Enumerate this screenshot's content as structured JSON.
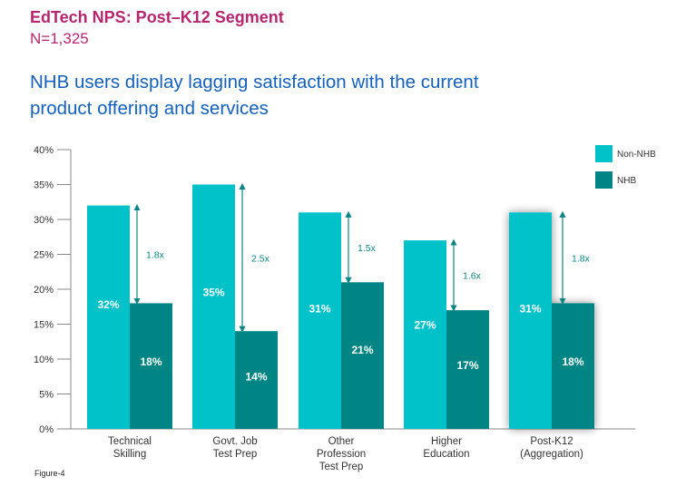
{
  "header": {
    "title": "EdTech NPS: Post–K12  Segment",
    "sample": "N=1,325",
    "headline": "NHB users display lagging satisfaction with the current product offering and services"
  },
  "footer": {
    "figure_label": "Figure-4"
  },
  "colors": {
    "non_nhb": "#00c2c8",
    "nhb": "#008585",
    "arrow": "#0d8585",
    "title": "#b5266f",
    "headline": "#1560b8"
  },
  "chart_data": {
    "type": "bar",
    "title": "NHB users display lagging satisfaction with the current product offering and services",
    "xlabel": "",
    "ylabel": "",
    "ylim": [
      0,
      40
    ],
    "yticks": [
      "0%",
      "5%",
      "10%",
      "15%",
      "20%",
      "25%",
      "30%",
      "35%",
      "40%"
    ],
    "ytick_values": [
      0,
      5,
      10,
      15,
      20,
      25,
      30,
      35,
      40
    ],
    "grid": false,
    "legend_position": "top-right",
    "categories": [
      [
        "Technical",
        "Skilling"
      ],
      [
        "Govt. Job",
        "Test Prep"
      ],
      [
        "Other",
        "Profession",
        "Test Prep"
      ],
      [
        "Higher",
        "Education"
      ],
      [
        "Post-K12",
        "(Aggregation)"
      ]
    ],
    "series": [
      {
        "name": "Non-NHB",
        "values": [
          32,
          35,
          31,
          27,
          31
        ],
        "labels": [
          "32%",
          "35%",
          "31%",
          "27%",
          "31%"
        ]
      },
      {
        "name": "NHB",
        "values": [
          18,
          14,
          21,
          17,
          18
        ],
        "labels": [
          "18%",
          "14%",
          "21%",
          "17%",
          "18%"
        ]
      }
    ],
    "annotations": {
      "ratios": [
        "1.8x",
        "2.5x",
        "1.5x",
        "1.6x",
        "1.8x"
      ],
      "highlighted_category_index": 4
    }
  }
}
